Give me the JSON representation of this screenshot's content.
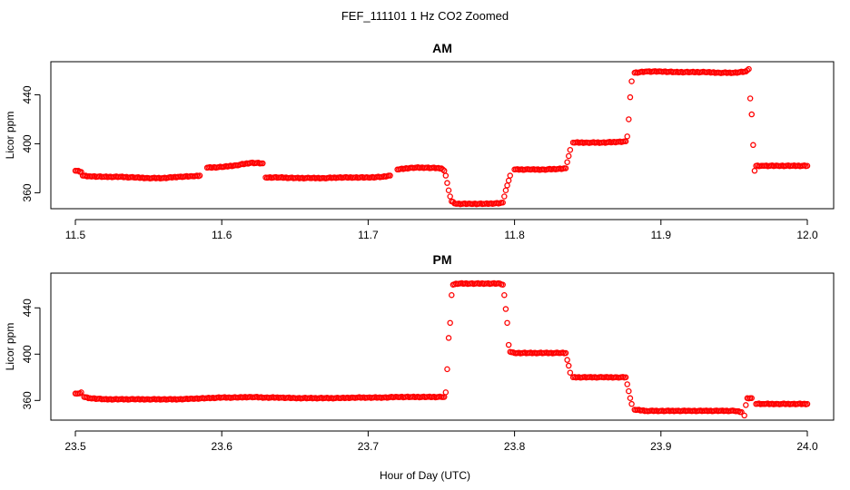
{
  "figure": {
    "title": "FEF_111101  1 Hz CO2 Zoomed",
    "xlabel": "Hour of Day (UTC)"
  },
  "colors": {
    "points": "#ff0000",
    "axis": "#000000"
  },
  "chart_data": [
    {
      "type": "scatter",
      "title": "AM",
      "xlabel": "Hour of Day (UTC)",
      "ylabel": "Licor ppm",
      "xlim": [
        11.5,
        12.0
      ],
      "ylim": [
        347,
        467
      ],
      "xticks": [
        11.5,
        11.6,
        11.7,
        11.8,
        11.9,
        12.0
      ],
      "xtick_labels": [
        "11.5",
        "11.6",
        "11.7",
        "11.8",
        "11.9",
        "12.0"
      ],
      "yticks": [
        360,
        400,
        440
      ],
      "ytick_labels": [
        "360",
        "400",
        "440"
      ],
      "grid": false,
      "series": [
        {
          "points": [
            [
              11.5,
              378
            ],
            [
              11.502,
              378
            ],
            [
              11.504,
              377
            ],
            [
              11.505,
              374
            ],
            [
              11.51,
              373.5
            ],
            [
              11.52,
              373
            ],
            [
              11.53,
              373
            ],
            [
              11.54,
              372.5
            ],
            [
              11.55,
              372
            ],
            [
              11.56,
              372
            ],
            [
              11.57,
              373
            ],
            [
              11.58,
              373.5
            ],
            [
              11.585,
              374
            ],
            [
              11.59,
              380.5
            ],
            [
              11.6,
              381
            ],
            [
              11.61,
              382.5
            ],
            [
              11.62,
              384.5
            ],
            [
              11.628,
              384
            ],
            [
              11.63,
              372.5
            ],
            [
              11.64,
              372.5
            ],
            [
              11.65,
              372
            ],
            [
              11.66,
              372
            ],
            [
              11.67,
              372
            ],
            [
              11.68,
              372.5
            ],
            [
              11.69,
              372.5
            ],
            [
              11.7,
              372.5
            ],
            [
              11.71,
              373
            ],
            [
              11.715,
              374
            ],
            [
              11.72,
              379
            ],
            [
              11.73,
              380.5
            ],
            [
              11.74,
              380.5
            ],
            [
              11.75,
              380
            ],
            [
              11.752,
              378
            ],
            [
              11.753,
              374
            ],
            [
              11.754,
              368
            ],
            [
              11.755,
              362
            ],
            [
              11.756,
              357
            ],
            [
              11.757,
              353
            ],
            [
              11.76,
              351
            ],
            [
              11.77,
              351
            ],
            [
              11.78,
              351
            ],
            [
              11.79,
              351.5
            ],
            [
              11.792,
              352
            ],
            [
              11.793,
              357
            ],
            [
              11.794,
              362
            ],
            [
              11.795,
              366
            ],
            [
              11.796,
              370
            ],
            [
              11.797,
              374
            ],
            [
              11.8,
              379
            ],
            [
              11.81,
              379
            ],
            [
              11.82,
              379
            ],
            [
              11.83,
              379.5
            ],
            [
              11.835,
              380
            ],
            [
              11.836,
              385
            ],
            [
              11.837,
              390
            ],
            [
              11.838,
              395
            ],
            [
              11.84,
              401
            ],
            [
              11.85,
              401
            ],
            [
              11.86,
              401
            ],
            [
              11.87,
              401.5
            ],
            [
              11.876,
              402
            ],
            [
              11.877,
              406
            ],
            [
              11.878,
              420
            ],
            [
              11.879,
              438
            ],
            [
              11.88,
              451
            ],
            [
              11.882,
              458
            ],
            [
              11.89,
              459
            ],
            [
              11.9,
              459
            ],
            [
              11.91,
              458.5
            ],
            [
              11.92,
              458.5
            ],
            [
              11.93,
              458.5
            ],
            [
              11.94,
              458
            ],
            [
              11.95,
              458
            ],
            [
              11.958,
              459
            ],
            [
              11.96,
              461
            ],
            [
              11.961,
              437
            ],
            [
              11.962,
              424
            ],
            [
              11.963,
              399
            ],
            [
              11.964,
              378
            ],
            [
              11.965,
              382
            ],
            [
              11.97,
              382
            ],
            [
              11.98,
              382
            ],
            [
              11.99,
              382
            ],
            [
              12.0,
              382
            ]
          ]
        }
      ]
    },
    {
      "type": "scatter",
      "title": "PM",
      "xlabel": "Hour of Day (UTC)",
      "ylabel": "Licor ppm",
      "xlim": [
        23.5,
        24.0
      ],
      "ylim": [
        343,
        470
      ],
      "xticks": [
        23.5,
        23.6,
        23.7,
        23.8,
        23.9,
        24.0
      ],
      "xtick_labels": [
        "23.5",
        "23.6",
        "23.7",
        "23.8",
        "23.9",
        "24.0"
      ],
      "yticks": [
        360,
        400,
        440
      ],
      "ytick_labels": [
        "360",
        "400",
        "440"
      ],
      "grid": false,
      "series": [
        {
          "points": [
            [
              23.5,
              366
            ],
            [
              23.502,
              366
            ],
            [
              23.504,
              367
            ],
            [
              23.506,
              363
            ],
            [
              23.51,
              362
            ],
            [
              23.52,
              361
            ],
            [
              23.53,
              361
            ],
            [
              23.54,
              361
            ],
            [
              23.55,
              361
            ],
            [
              23.56,
              361
            ],
            [
              23.57,
              361
            ],
            [
              23.58,
              361.5
            ],
            [
              23.59,
              362
            ],
            [
              23.6,
              362.5
            ],
            [
              23.61,
              362.5
            ],
            [
              23.62,
              363
            ],
            [
              23.63,
              362.5
            ],
            [
              23.64,
              362.5
            ],
            [
              23.65,
              362
            ],
            [
              23.66,
              362
            ],
            [
              23.67,
              362
            ],
            [
              23.68,
              362
            ],
            [
              23.69,
              362.5
            ],
            [
              23.7,
              362.5
            ],
            [
              23.71,
              362.5
            ],
            [
              23.72,
              363
            ],
            [
              23.73,
              363
            ],
            [
              23.74,
              363
            ],
            [
              23.75,
              363
            ],
            [
              23.752,
              363
            ],
            [
              23.753,
              367
            ],
            [
              23.754,
              387
            ],
            [
              23.755,
              414
            ],
            [
              23.756,
              427
            ],
            [
              23.757,
              451
            ],
            [
              23.758,
              460
            ],
            [
              23.76,
              461
            ],
            [
              23.77,
              461
            ],
            [
              23.78,
              461
            ],
            [
              23.79,
              461
            ],
            [
              23.792,
              460
            ],
            [
              23.793,
              451
            ],
            [
              23.794,
              439
            ],
            [
              23.795,
              427
            ],
            [
              23.796,
              408
            ],
            [
              23.797,
              402
            ],
            [
              23.8,
              401
            ],
            [
              23.81,
              401
            ],
            [
              23.82,
              401
            ],
            [
              23.83,
              401
            ],
            [
              23.835,
              401
            ],
            [
              23.836,
              395
            ],
            [
              23.837,
              390
            ],
            [
              23.838,
              384
            ],
            [
              23.84,
              380
            ],
            [
              23.85,
              380
            ],
            [
              23.86,
              380
            ],
            [
              23.87,
              380
            ],
            [
              23.876,
              380
            ],
            [
              23.877,
              374
            ],
            [
              23.878,
              368
            ],
            [
              23.879,
              362
            ],
            [
              23.88,
              357
            ],
            [
              23.882,
              352
            ],
            [
              23.89,
              351
            ],
            [
              23.9,
              351
            ],
            [
              23.91,
              351
            ],
            [
              23.92,
              351
            ],
            [
              23.93,
              351
            ],
            [
              23.94,
              351
            ],
            [
              23.95,
              351
            ],
            [
              23.955,
              350
            ],
            [
              23.957,
              347
            ],
            [
              23.958,
              356
            ],
            [
              23.959,
              362
            ],
            [
              23.962,
              362
            ],
            [
              23.965,
              357
            ],
            [
              23.97,
              357
            ],
            [
              23.98,
              357
            ],
            [
              23.99,
              357
            ],
            [
              24.0,
              357
            ]
          ]
        }
      ]
    }
  ]
}
